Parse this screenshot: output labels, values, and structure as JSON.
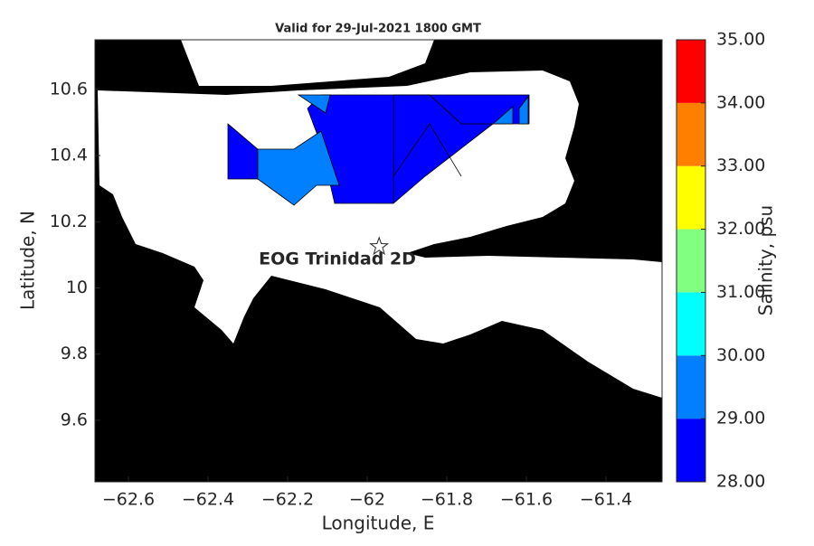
{
  "map": {
    "title": "Valid for 29-Jul-2021 1800 GMT",
    "xlabel": "Longitude, E",
    "ylabel": "Latitude, N",
    "xlim": [
      -62.684,
      -61.259
    ],
    "ylim": [
      9.414,
      10.75
    ],
    "xticks": [
      {
        "value": -62.6,
        "label": "−62.6"
      },
      {
        "value": -62.4,
        "label": "−62.4"
      },
      {
        "value": -62.2,
        "label": "−62.2"
      },
      {
        "value": -62,
        "label": "−62"
      },
      {
        "value": -61.8,
        "label": "−61.8"
      },
      {
        "value": -61.6,
        "label": "−61.6"
      },
      {
        "value": -61.4,
        "label": "−61.4"
      }
    ],
    "yticks": [
      9.6,
      9.8,
      10,
      10.2,
      10.4,
      10.6
    ],
    "site": {
      "label": "EOG Trinidad 2D",
      "lon": -61.97,
      "lat": 10.125
    },
    "colorbar": {
      "label": "Salinity, psu",
      "lim": [
        28,
        35
      ],
      "ticks": [
        {
          "value": 28,
          "label": "28.00"
        },
        {
          "value": 29,
          "label": "29.00"
        },
        {
          "value": 30,
          "label": "30.00"
        },
        {
          "value": 31,
          "label": "31.00"
        },
        {
          "value": 32,
          "label": "32.00"
        },
        {
          "value": 33,
          "label": "33.00"
        },
        {
          "value": 34,
          "label": "34.00"
        },
        {
          "value": 35,
          "label": "35.00"
        }
      ],
      "colors": [
        "#0000ff",
        "#0080ff",
        "#00ffff",
        "#80ff80",
        "#ffff00",
        "#ff8000",
        "#ff0000"
      ]
    }
  }
}
